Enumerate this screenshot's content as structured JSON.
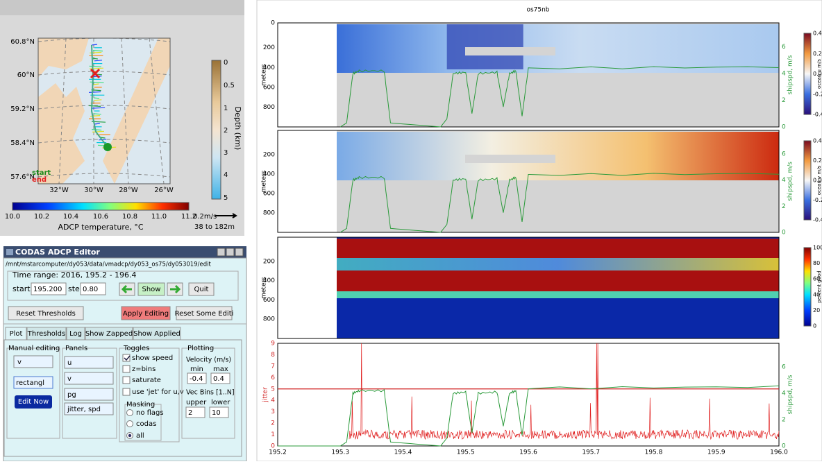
{
  "map": {
    "lat_labels": [
      "60.8°N",
      "60°N",
      "59.2°N",
      "58.4°N",
      "57.6°N"
    ],
    "lon_labels": [
      "32°W",
      "30°W",
      "28°W",
      "26°W"
    ],
    "start": "start",
    "end": "end",
    "depth_ticks": [
      "0",
      "0.5",
      "1",
      "2",
      "3",
      "4",
      "5"
    ],
    "depth_label": "Depth (km)",
    "temp_ticks": [
      "10.0",
      "10.2",
      "10.4",
      "10.6",
      "10.8",
      "11.0",
      "11.2"
    ],
    "temp_label": "ADCP temperature, °C",
    "scale": "0.2m/s",
    "depth_range": "38 to 182m"
  },
  "editor": {
    "title": "CODAS ADCP Editor",
    "path": "/mnt/mstarcomputer/dy053/data/vmadcp/dy053_os75/dy053019/edit",
    "time_range": "Time range:  2016, 195.2 - 196.4",
    "start_label": "start",
    "start_value": "195.200",
    "step_label": "step",
    "step_value": "0.80",
    "show": "Show",
    "quit": "Quit",
    "reset_thresholds": "Reset Thresholds",
    "apply_editing": "Apply Editing",
    "reset_some": "Reset Some Editi",
    "tabs": [
      "Plot",
      "Thresholds",
      "Log",
      "Show Zapped",
      "Show Applied"
    ],
    "manual_editing": {
      "title": "Manual editing",
      "component": "v",
      "mode": "rectangl",
      "button": "Edit Now"
    },
    "panels": {
      "title": "Panels",
      "items": [
        "u",
        "v",
        "pg",
        "jitter, spd"
      ]
    },
    "toggles": {
      "title": "Toggles",
      "items": [
        "show speed",
        "z=bins",
        "saturate",
        "use 'jet' for u,v"
      ]
    },
    "masking": {
      "title": "Masking",
      "items": [
        "no flags",
        "codas",
        "all"
      ]
    },
    "plotting": {
      "title": "Plotting",
      "velocity": "Velocity (m/s)",
      "min_label": "min",
      "max_label": "max",
      "min": "-0.4",
      "max": "0.4",
      "vec_bins": "Vec Bins [1..N]",
      "upper_label": "upper",
      "lower_label": "lower",
      "upper": "2",
      "lower": "10"
    }
  },
  "plots": {
    "title": "os75nb",
    "depth_top": "0",
    "depth_ticks": [
      "200",
      "400",
      "600",
      "800"
    ],
    "depth_label": "meters",
    "speed_ticks": [
      "0",
      "2",
      "4",
      "6"
    ],
    "speed_label": "shipspd, m/s",
    "u_ticks": [
      "0.4",
      "0.2",
      "0.0",
      "-0.2",
      "-0.4"
    ],
    "u_label": "ocean u m/s",
    "v_ticks": [
      "0.4",
      "0.2",
      "0.0",
      "-0.2",
      "-0.4"
    ],
    "v_label": "ocean v m/s",
    "pg_ticks": [
      "100",
      "80",
      "60",
      "40",
      "20",
      "0"
    ],
    "pg_label": "percent good",
    "jitter_ticks": [
      "0",
      "1",
      "2",
      "3",
      "4",
      "5",
      "6",
      "7",
      "8",
      "9"
    ],
    "jitter_label": "jitter",
    "x_ticks": [
      "195.2",
      "195.3",
      "195.4",
      "195.5",
      "195.6",
      "195.7",
      "195.8",
      "195.9",
      "196.0"
    ]
  }
}
